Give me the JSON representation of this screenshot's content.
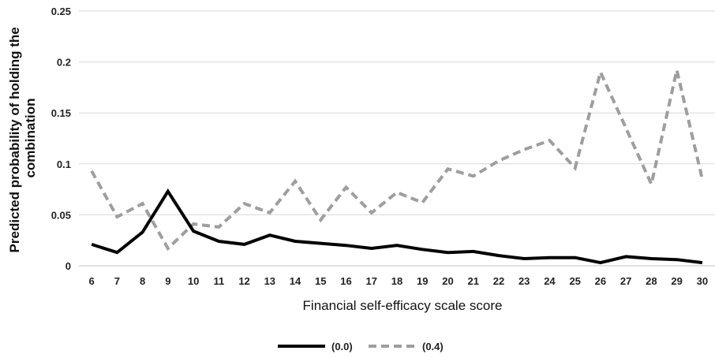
{
  "chart_data": {
    "type": "line",
    "x": [
      6,
      7,
      8,
      9,
      10,
      11,
      12,
      13,
      14,
      15,
      16,
      17,
      18,
      19,
      20,
      21,
      22,
      23,
      24,
      25,
      26,
      27,
      28,
      29,
      30
    ],
    "series": [
      {
        "name": "(0.0)",
        "color": "#000000",
        "dash": "solid",
        "values": [
          0.021,
          0.013,
          0.033,
          0.073,
          0.034,
          0.024,
          0.021,
          0.03,
          0.024,
          0.022,
          0.02,
          0.017,
          0.02,
          0.016,
          0.013,
          0.014,
          0.01,
          0.007,
          0.008,
          0.008,
          0.003,
          0.009,
          0.007,
          0.006,
          0.003
        ]
      },
      {
        "name": "(0.4)",
        "color": "#9e9e9e",
        "dash": "dashed",
        "values": [
          0.093,
          0.048,
          0.061,
          0.017,
          0.041,
          0.038,
          0.061,
          0.052,
          0.083,
          0.045,
          0.077,
          0.052,
          0.072,
          0.062,
          0.095,
          0.088,
          0.103,
          0.114,
          0.123,
          0.096,
          0.19,
          0.135,
          0.08,
          0.192,
          0.085
        ]
      }
    ],
    "xlabel": "Financial self-efficacy scale score",
    "ylabel_lines": [
      "Predicted probability of holding the",
      "combination"
    ],
    "ylim": [
      0,
      0.25
    ],
    "yticks": [
      0,
      0.05,
      0.1,
      0.15,
      0.2,
      0.25
    ],
    "ytick_labels": [
      "0",
      "0.05",
      "0.1",
      "0.15",
      "0.2",
      "0.25"
    ],
    "grid": true,
    "legend_position": "bottom"
  }
}
